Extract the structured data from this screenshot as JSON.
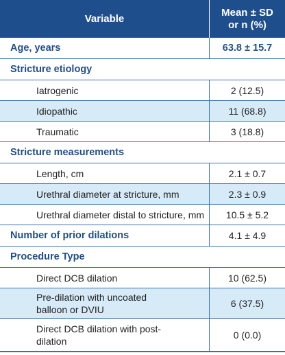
{
  "header": {
    "variable": "Variable",
    "stat": "Mean ± SD or n (%)"
  },
  "rows": {
    "age": {
      "label": "Age, years",
      "value": "63.8 ± 15.7"
    },
    "etiology": {
      "title": "Stricture etiology",
      "iatrogenic": {
        "label": "Iatrogenic",
        "value": "2 (12.5)"
      },
      "idiopathic": {
        "label": "Idiopathic",
        "value": "11 (68.8)"
      },
      "traumatic": {
        "label": "Traumatic",
        "value": "3 (18.8)"
      }
    },
    "measurements": {
      "title": "Stricture measurements",
      "length": {
        "label": "Length, cm",
        "value": "2.1 ± 0.7"
      },
      "diameter_at": {
        "label": "Urethral diameter at stricture, mm",
        "value": "2.3 ± 0.9"
      },
      "diameter_distal": {
        "label": "Urethral diameter distal to stricture, mm",
        "value": "10.5 ± 5.2"
      }
    },
    "prior_dilations": {
      "label": "Number of prior dilations",
      "value": "4.1 ± 4.9"
    },
    "procedure": {
      "title": "Procedure Type",
      "direct": {
        "label": "Direct DCB dilation",
        "value": "10 (62.5)"
      },
      "predilation": {
        "label": "Pre-dilation with uncoated balloon or DVIU",
        "value": "6 (37.5)"
      },
      "postdilation": {
        "label": "Direct DCB dilation with post-dilation",
        "value": "0 (0.0)"
      }
    }
  },
  "colors": {
    "header_bg": "#1f4e8c",
    "section_text": "#1f4e8c",
    "alt_row_bg": "#d6eaf8",
    "rule": "#3d6fae"
  }
}
